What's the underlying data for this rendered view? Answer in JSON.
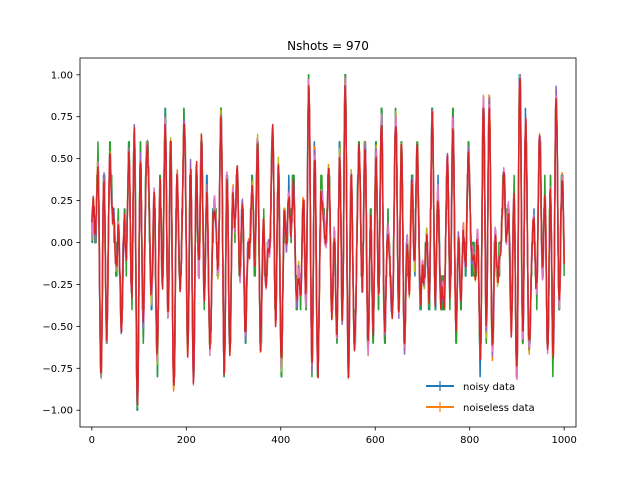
{
  "chart_data": {
    "type": "line",
    "title": "Nshots = 970",
    "xlabel": "",
    "ylabel": "",
    "xlim": [
      -25,
      1025
    ],
    "ylim": [
      -1.1,
      1.1
    ],
    "xticks": [
      0,
      200,
      400,
      600,
      800,
      1000
    ],
    "xtick_labels": [
      "0",
      "200",
      "400",
      "600",
      "800",
      "1000"
    ],
    "yticks": [
      -1.0,
      -0.75,
      -0.5,
      -0.25,
      0.0,
      0.25,
      0.5,
      0.75,
      1.0
    ],
    "ytick_labels": [
      "−1.00",
      "−0.75",
      "−0.50",
      "−0.25",
      "0.00",
      "0.25",
      "0.50",
      "0.75",
      "1.00"
    ],
    "grid": false,
    "legend": {
      "location": "lower-right",
      "frame": false,
      "entries": [
        {
          "label": "noisy data",
          "color": "#1f77b4"
        },
        {
          "label": "noiseless data",
          "color": "#ff7f0e"
        }
      ]
    },
    "series": [
      {
        "color": "#1f77b4",
        "x_range": [
          0,
          1000
        ],
        "n_points": 1001,
        "amplitude": [
          -1,
          1
        ],
        "style": "dense oscillating",
        "quantized": true
      },
      {
        "color": "#ff7f0e",
        "x_range": [
          0,
          1000
        ],
        "n_points": 1001,
        "amplitude": [
          -1,
          1
        ],
        "style": "dense oscillating"
      },
      {
        "color": "#2ca02c",
        "x_range": [
          0,
          1000
        ],
        "n_points": 1001,
        "amplitude": [
          -1,
          1
        ],
        "style": "dense oscillating",
        "quantized": true
      },
      {
        "color": "#bcbd22",
        "x_range": [
          0,
          1000
        ],
        "n_points": 1001,
        "amplitude": [
          -1,
          1
        ],
        "style": "dense oscillating"
      },
      {
        "color": "#9467bd",
        "x_range": [
          0,
          1000
        ],
        "n_points": 1001,
        "amplitude": [
          -1,
          1
        ],
        "style": "dense oscillating"
      },
      {
        "color": "#e377c2",
        "x_range": [
          0,
          1000
        ],
        "n_points": 1001,
        "amplitude": [
          -1,
          1
        ],
        "style": "dense oscillating"
      },
      {
        "color": "#d62728",
        "x_range": [
          0,
          1000
        ],
        "n_points": 1001,
        "amplitude": [
          -1,
          1
        ],
        "style": "dense oscillating"
      }
    ]
  }
}
